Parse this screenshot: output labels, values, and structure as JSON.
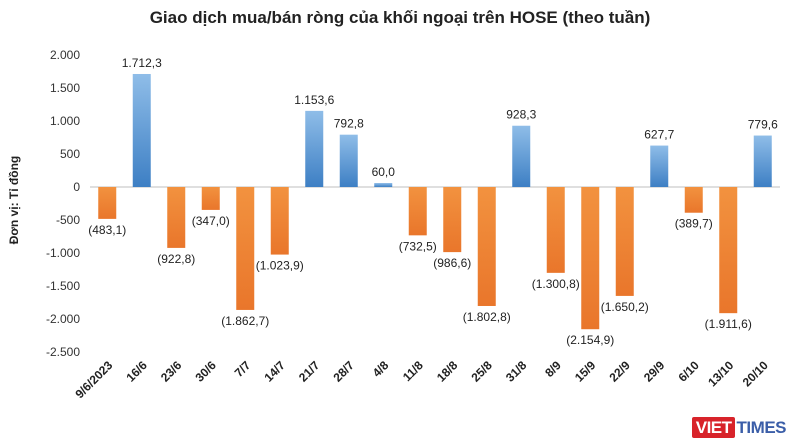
{
  "chart_data": {
    "type": "bar",
    "title": "Giao dịch mua/bán ròng của khối ngoại trên HOSE (theo tuần)",
    "ylabel": "Đơn vị: Tỉ đồng",
    "ylim": [
      -2500,
      2000
    ],
    "yticks": [
      2000,
      1500,
      1000,
      500,
      0,
      -500,
      -1000,
      -1500,
      -2000,
      -2500
    ],
    "ytick_labels": [
      "2.000",
      "1.500",
      "1.000",
      "500",
      "0",
      "-500",
      "-1.000",
      "-1.500",
      "-2.000",
      "-2.500"
    ],
    "categories": [
      "9/6/2023",
      "16/6",
      "23/6",
      "30/6",
      "7/7",
      "14/7",
      "21/7",
      "28/7",
      "4/8",
      "11/8",
      "18/8",
      "25/8",
      "31/8",
      "8/9",
      "15/9",
      "22/9",
      "29/9",
      "6/10",
      "13/10",
      "20/10"
    ],
    "values": [
      -483.1,
      1712.3,
      -922.8,
      -347.0,
      -1862.7,
      -1023.9,
      1153.6,
      792.8,
      60.0,
      -732.5,
      -986.6,
      -1802.8,
      928.3,
      -1300.8,
      -2154.9,
      -1650.2,
      627.7,
      -389.7,
      -1911.6,
      779.6
    ],
    "data_labels": [
      "(483,1)",
      "1.712,3",
      "(922,8)",
      "(347,0)",
      "(1.862,7)",
      "(1.023,9)",
      "1.153,6",
      "792,8",
      "60,0",
      "(732,5)",
      "(986,6)",
      "(1.802,8)",
      "928,3",
      "(1.300,8)",
      "(2.154,9)",
      "(1.650,2)",
      "627,7",
      "(389,7)",
      "(1.911,6)",
      "779,6"
    ],
    "colors": {
      "positive": "#5b9bd5",
      "negative": "#ed7d31"
    },
    "grid": false,
    "legend": "none"
  },
  "logo": {
    "part1": "VIET",
    "part2": "TIMES"
  }
}
